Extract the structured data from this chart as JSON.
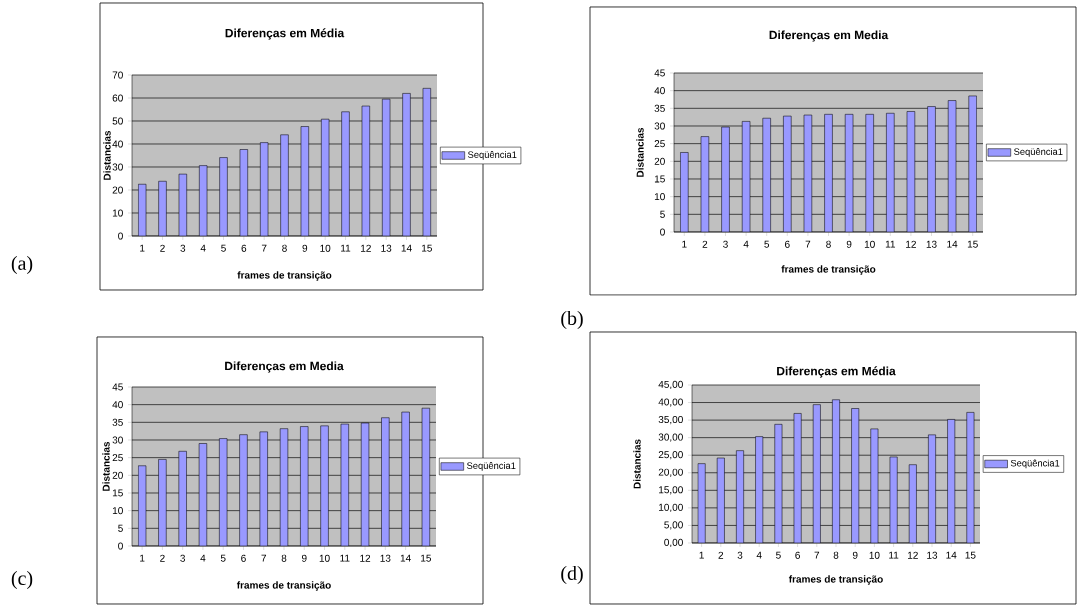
{
  "chart_data": [
    {
      "type": "bar",
      "title": "Diferenças em Média",
      "xlabel": "frames de transição",
      "ylabel": "Distancias",
      "annotations": [
        "(a)"
      ],
      "categories": [
        "1",
        "2",
        "3",
        "4",
        "5",
        "6",
        "7",
        "8",
        "9",
        "10",
        "11",
        "12",
        "13",
        "14",
        "15"
      ],
      "series": [
        {
          "name": "Seqüência1",
          "color": "#9999ff",
          "values": [
            22.5,
            23.8,
            26.9,
            30.6,
            34.1,
            37.6,
            40.6,
            44.0,
            47.6,
            50.8,
            54.0,
            56.5,
            59.5,
            62.0,
            64.2
          ]
        }
      ],
      "ylim": [
        0,
        70
      ],
      "yticks": [
        0,
        10,
        20,
        30,
        40,
        50,
        60,
        70
      ],
      "grid": "y",
      "legend": "right"
    },
    {
      "type": "bar",
      "title": "Diferenças em Media",
      "xlabel": "frames de transição",
      "ylabel": "Distancias",
      "annotations": [
        "(b)"
      ],
      "categories": [
        "1",
        "2",
        "3",
        "4",
        "5",
        "6",
        "7",
        "8",
        "9",
        "10",
        "11",
        "12",
        "13",
        "14",
        "15"
      ],
      "series": [
        {
          "name": "Seqüência1",
          "color": "#9999ff",
          "values": [
            22.5,
            27.0,
            29.7,
            31.3,
            32.2,
            32.8,
            33.1,
            33.3,
            33.3,
            33.3,
            33.6,
            34.1,
            35.5,
            37.2,
            38.5
          ]
        }
      ],
      "ylim": [
        0,
        45
      ],
      "yticks": [
        0,
        5,
        10,
        15,
        20,
        25,
        30,
        35,
        40,
        45
      ],
      "grid": "y",
      "legend": "right"
    },
    {
      "type": "bar",
      "title": "Diferenças em Media",
      "xlabel": "frames de transição",
      "ylabel": "Distancias",
      "annotations": [
        "(c)"
      ],
      "categories": [
        "1",
        "2",
        "3",
        "4",
        "5",
        "6",
        "7",
        "8",
        "9",
        "10",
        "11",
        "12",
        "13",
        "14",
        "15"
      ],
      "series": [
        {
          "name": "Seqüência1",
          "color": "#9999ff",
          "values": [
            22.7,
            24.5,
            26.8,
            29.0,
            30.4,
            31.5,
            32.3,
            33.2,
            33.8,
            34.0,
            34.5,
            34.8,
            36.3,
            37.9,
            39.0
          ]
        }
      ],
      "ylim": [
        0,
        45
      ],
      "yticks": [
        0,
        5,
        10,
        15,
        20,
        25,
        30,
        35,
        40,
        45
      ],
      "grid": "y",
      "legend": "right"
    },
    {
      "type": "bar",
      "title": "Diferenças em Média",
      "xlabel": "frames de transição",
      "ylabel": "Distancias",
      "annotations": [
        "(d)"
      ],
      "categories": [
        "1",
        "2",
        "3",
        "4",
        "5",
        "6",
        "7",
        "8",
        "9",
        "10",
        "11",
        "12",
        "13",
        "14",
        "15"
      ],
      "series": [
        {
          "name": "Seqüência1",
          "color": "#9999ff",
          "values": [
            22.6,
            24.2,
            26.3,
            30.3,
            33.8,
            36.9,
            39.4,
            40.8,
            38.3,
            32.5,
            24.5,
            22.3,
            30.8,
            35.2,
            37.2
          ]
        }
      ],
      "ylim": [
        0,
        45
      ],
      "yticks": [
        {
          "value": 0,
          "label": "0,00"
        },
        {
          "value": 5,
          "label": "5,00"
        },
        {
          "value": 10,
          "label": "10,00"
        },
        {
          "value": 15,
          "label": "15,00"
        },
        {
          "value": 20,
          "label": "20,00"
        },
        {
          "value": 25,
          "label": "25,00"
        },
        {
          "value": 30,
          "label": "30,00"
        },
        {
          "value": 35,
          "label": "35,00"
        },
        {
          "value": 40,
          "label": "40,00"
        },
        {
          "value": 45,
          "label": "45,00"
        }
      ],
      "grid": "y",
      "legend": "right"
    }
  ]
}
